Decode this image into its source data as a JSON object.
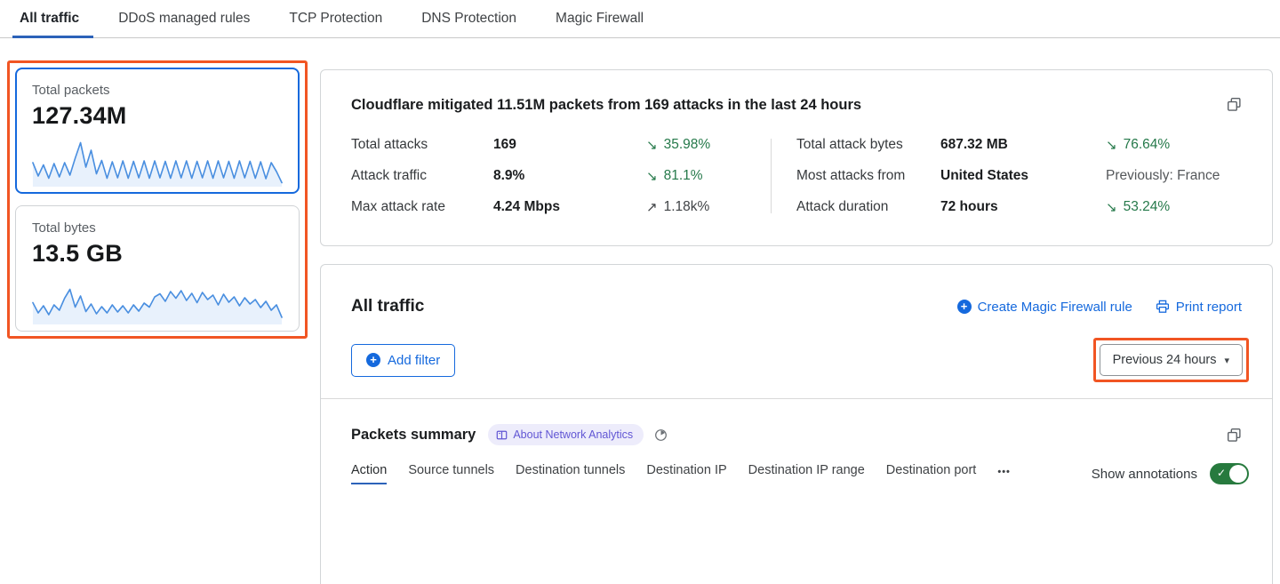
{
  "tabs": [
    {
      "label": "All traffic",
      "active": true
    },
    {
      "label": "DDoS managed rules",
      "active": false
    },
    {
      "label": "TCP Protection",
      "active": false
    },
    {
      "label": "DNS Protection",
      "active": false
    },
    {
      "label": "Magic Firewall",
      "active": false
    }
  ],
  "sidebar": {
    "cards": [
      {
        "title": "Total packets",
        "value": "127.34M",
        "selected": true
      },
      {
        "title": "Total bytes",
        "value": "13.5 GB",
        "selected": false
      }
    ]
  },
  "chart_data": [
    {
      "type": "line",
      "title": "Total packets sparkline",
      "ylim": [
        0,
        100
      ],
      "values": [
        50,
        20,
        45,
        15,
        48,
        18,
        50,
        22,
        60,
        95,
        40,
        78,
        25,
        55,
        15,
        52,
        16,
        54,
        15,
        53,
        16,
        54,
        15,
        54,
        16,
        53,
        15,
        54,
        16,
        54,
        15,
        53,
        16,
        54,
        15,
        54,
        16,
        53,
        15,
        54,
        16,
        53,
        15,
        52,
        14,
        50,
        30,
        5
      ]
    },
    {
      "type": "line",
      "title": "Total bytes sparkline",
      "ylim": [
        0,
        100
      ],
      "values": [
        45,
        22,
        38,
        18,
        40,
        28,
        55,
        75,
        35,
        60,
        25,
        42,
        20,
        36,
        22,
        40,
        24,
        38,
        22,
        40,
        26,
        44,
        35,
        58,
        65,
        48,
        70,
        55,
        72,
        50,
        66,
        45,
        68,
        52,
        62,
        40,
        64,
        46,
        58,
        38,
        56,
        42,
        52,
        34,
        48,
        28,
        40,
        12
      ]
    }
  ],
  "summary": {
    "title": "Cloudflare mitigated 11.51M packets from 169 attacks in the last 24 hours",
    "left": [
      {
        "label": "Total attacks",
        "value": "169",
        "arrow": "↘",
        "trend": "35.98%"
      },
      {
        "label": "Attack traffic",
        "value": "8.9%",
        "arrow": "↘",
        "trend": "81.1%"
      },
      {
        "label": "Max attack rate",
        "value": "4.24 Mbps",
        "arrow": "↗",
        "trend": "1.18k%"
      }
    ],
    "right": [
      {
        "label": "Total attack bytes",
        "value": "687.32 MB",
        "arrow": "↘",
        "trend": "76.64%"
      },
      {
        "label": "Most attacks from",
        "value": "United States",
        "trend": "Previously: France"
      },
      {
        "label": "Attack duration",
        "value": "72 hours",
        "arrow": "↘",
        "trend": "53.24%"
      }
    ]
  },
  "traffic": {
    "title": "All traffic",
    "create_rule": "Create Magic Firewall rule",
    "print_report": "Print report",
    "add_filter": "Add filter",
    "time_range": "Previous 24 hours"
  },
  "packets": {
    "title": "Packets summary",
    "badge": "About Network Analytics",
    "tabs": [
      {
        "label": "Action",
        "active": true
      },
      {
        "label": "Source tunnels",
        "active": false
      },
      {
        "label": "Destination tunnels",
        "active": false
      },
      {
        "label": "Destination IP",
        "active": false
      },
      {
        "label": "Destination IP range",
        "active": false
      },
      {
        "label": "Destination port",
        "active": false
      }
    ],
    "more": "•••",
    "show_annotations": "Show annotations",
    "annotations_on": true
  },
  "icons": {
    "plus": "+",
    "caret": "▾",
    "check": "✓"
  },
  "colors": {
    "accent": "#1569dd",
    "tab-blue": "#2c62b9",
    "green": "#25794a",
    "orange": "#f15523",
    "toggle-green": "#277a3e",
    "badge-text": "#6156d4",
    "spark": "#4a8fe0"
  }
}
